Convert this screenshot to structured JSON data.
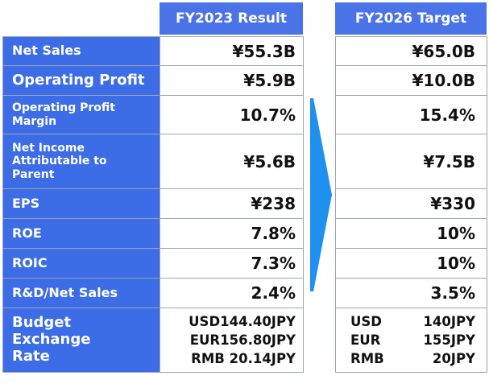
{
  "headers": {
    "result": "FY2023 Result",
    "target": "FY2026 Target"
  },
  "rows": [
    {
      "label": "Net Sales",
      "result": "¥55.3B",
      "target": "¥65.0B"
    },
    {
      "label": "Operating Profit",
      "result": "¥5.9B",
      "target": "¥10.0B"
    },
    {
      "label": "Operating Profit Margin",
      "result": "10.7%",
      "target": "15.4%"
    },
    {
      "label": "Net Income Attributable to Parent",
      "result": "¥5.6B",
      "target": "¥7.5B"
    },
    {
      "label": "EPS",
      "result": "¥238",
      "target": "¥330"
    },
    {
      "label": "ROE",
      "result": "7.8%",
      "target": "10%"
    },
    {
      "label": "ROIC",
      "result": "7.3%",
      "target": "10%"
    },
    {
      "label": "R&D/Net Sales",
      "result": "2.4%",
      "target": "3.5%"
    }
  ],
  "exchange": {
    "label": "Budget Exchange Rate",
    "result": [
      "USD144.40JPY",
      "EUR156.80JPY",
      "RMB 20.14JPY"
    ],
    "target": [
      {
        "currency": "USD",
        "amount": "140JPY"
      },
      {
        "currency": "EUR",
        "amount": "155JPY"
      },
      {
        "currency": "RMB",
        "amount": "20JPY"
      }
    ]
  },
  "colors": {
    "header": "#4a73e8",
    "label_bg": "#3d6de6",
    "arrow": "#1e90ee"
  },
  "icons": {
    "arrow": "right-pointing-chevron-arrow"
  }
}
